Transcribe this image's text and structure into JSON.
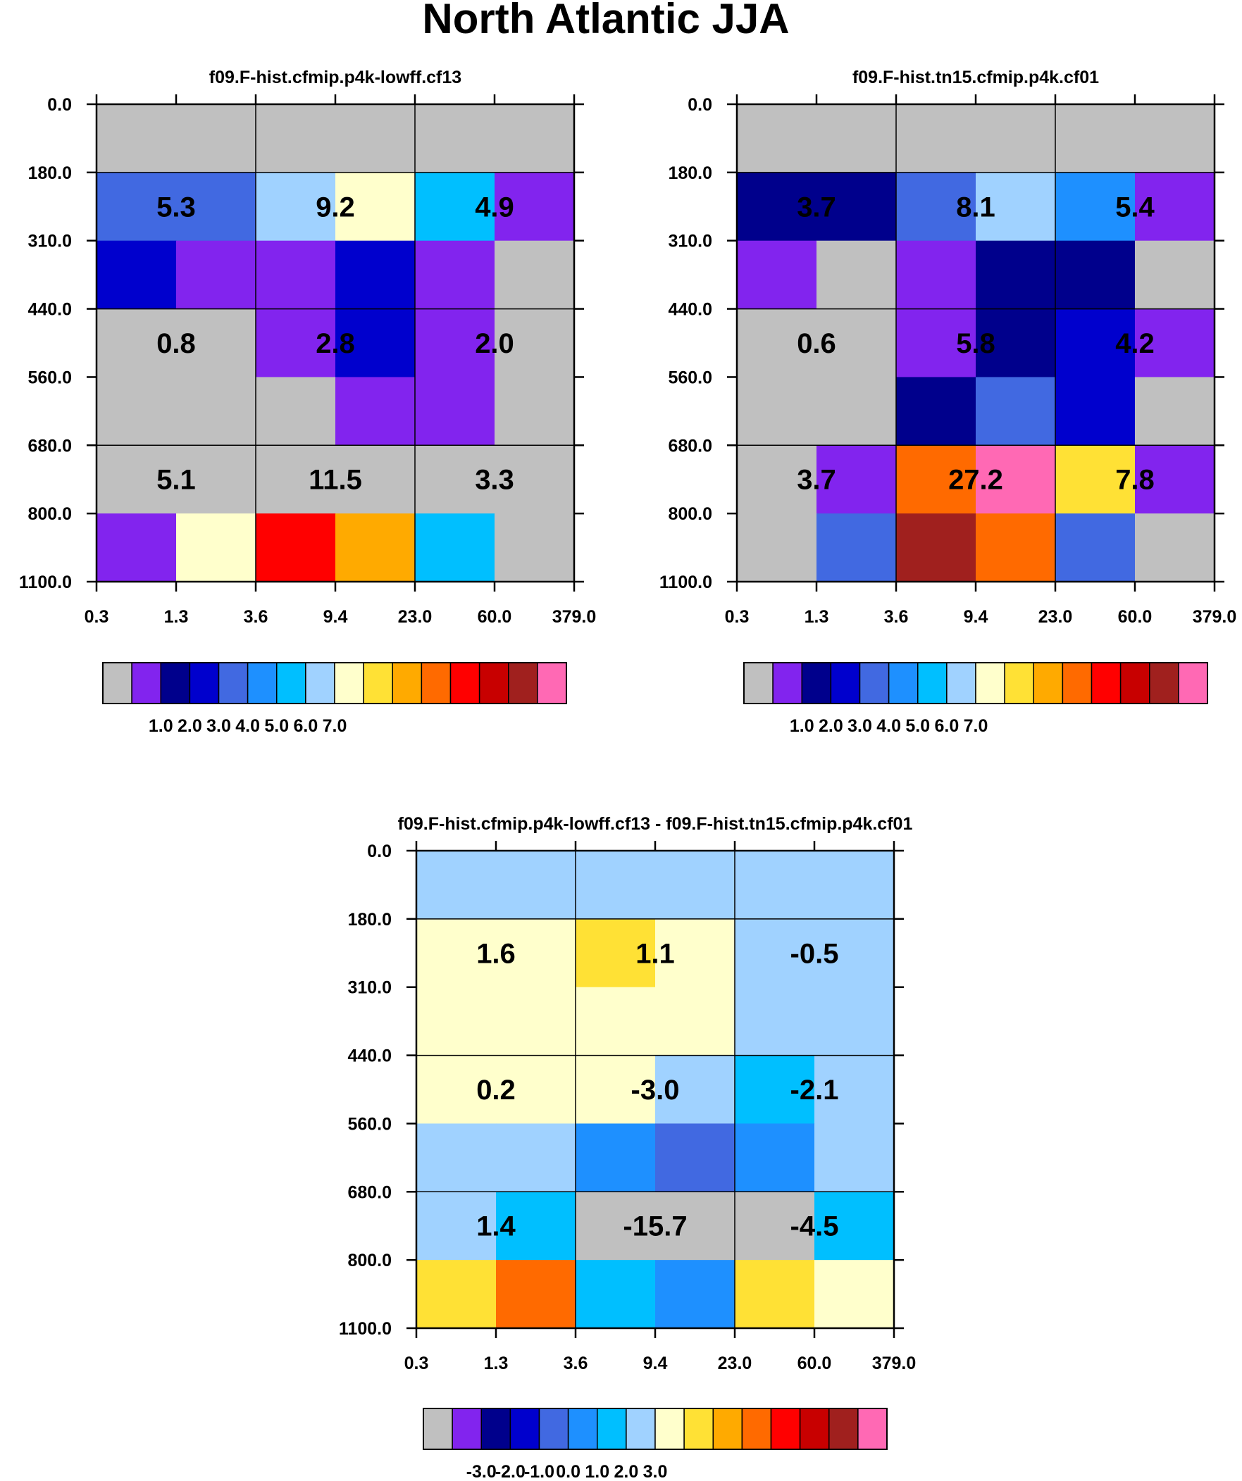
{
  "title": "North Atlantic JJA",
  "chart_data": [
    {
      "type": "heatmap",
      "title": "f09.F-hist.cfmip.p4k-lowff.cf13",
      "x_ticks": [
        "0.3",
        "1.3",
        "3.6",
        "9.4",
        "23.0",
        "60.0",
        "379.0"
      ],
      "y_ticks": [
        "0.0",
        "180.0",
        "310.0",
        "440.0",
        "560.0",
        "680.0",
        "800.0",
        "1100.0"
      ],
      "color_index": [
        [
          0,
          0,
          0,
          0,
          0,
          0
        ],
        [
          4,
          4,
          7,
          8,
          6,
          1
        ],
        [
          3,
          1,
          1,
          3,
          1,
          0
        ],
        [
          0,
          0,
          1,
          3,
          1,
          0
        ],
        [
          0,
          0,
          0,
          1,
          1,
          0
        ],
        [
          0,
          0,
          0,
          0,
          0,
          0
        ],
        [
          1,
          8,
          12,
          10,
          6,
          0
        ]
      ],
      "cell_labels": [
        [
          "5.3",
          "9.2",
          "4.9"
        ],
        [
          "0.8",
          "2.8",
          "2.0"
        ],
        [
          "5.1",
          "11.5",
          "3.3"
        ]
      ],
      "colorbar": {
        "colors": [
          "#c0c0c0",
          "#8224ee",
          "#00008c",
          "#0000cd",
          "#4169e1",
          "#1e90ff",
          "#00bfff",
          "#a0d2ff",
          "#ffffcc",
          "#ffe135",
          "#ffaa00",
          "#ff6a00",
          "#ff0000",
          "#c80000",
          "#a0201e",
          "#ff69b4"
        ],
        "labels": [
          "1.0",
          "2.0",
          "3.0",
          "4.0",
          "5.0",
          "6.0",
          "7.0"
        ]
      }
    },
    {
      "type": "heatmap",
      "title": "f09.F-hist.tn15.cfmip.p4k.cf01",
      "x_ticks": [
        "0.3",
        "1.3",
        "3.6",
        "9.4",
        "23.0",
        "60.0",
        "379.0"
      ],
      "y_ticks": [
        "0.0",
        "180.0",
        "310.0",
        "440.0",
        "560.0",
        "680.0",
        "800.0",
        "1100.0"
      ],
      "color_index": [
        [
          0,
          0,
          0,
          0,
          0,
          0
        ],
        [
          2,
          2,
          4,
          7,
          5,
          1
        ],
        [
          1,
          0,
          1,
          2,
          2,
          0
        ],
        [
          0,
          0,
          1,
          2,
          3,
          1
        ],
        [
          0,
          0,
          2,
          4,
          3,
          0
        ],
        [
          0,
          1,
          11,
          15,
          9,
          1
        ],
        [
          0,
          4,
          14,
          11,
          4,
          0
        ]
      ],
      "cell_labels": [
        [
          "3.7",
          "8.1",
          "5.4"
        ],
        [
          "0.6",
          "5.8",
          "4.2"
        ],
        [
          "3.7",
          "27.2",
          "7.8"
        ]
      ],
      "colorbar": {
        "colors": [
          "#c0c0c0",
          "#8224ee",
          "#00008c",
          "#0000cd",
          "#4169e1",
          "#1e90ff",
          "#00bfff",
          "#a0d2ff",
          "#ffffcc",
          "#ffe135",
          "#ffaa00",
          "#ff6a00",
          "#ff0000",
          "#c80000",
          "#a0201e",
          "#ff69b4"
        ],
        "labels": [
          "1.0",
          "2.0",
          "3.0",
          "4.0",
          "5.0",
          "6.0",
          "7.0"
        ]
      }
    },
    {
      "type": "heatmap",
      "title": "f09.F-hist.cfmip.p4k-lowff.cf13 - f09.F-hist.tn15.cfmip.p4k.cf01",
      "x_ticks": [
        "0.3",
        "1.3",
        "3.6",
        "9.4",
        "23.0",
        "60.0",
        "379.0"
      ],
      "y_ticks": [
        "0.0",
        "180.0",
        "310.0",
        "440.0",
        "560.0",
        "680.0",
        "800.0",
        "1100.0"
      ],
      "color_index": [
        [
          7,
          7,
          7,
          7,
          7,
          7
        ],
        [
          8,
          8,
          9,
          8,
          7,
          7
        ],
        [
          8,
          8,
          8,
          8,
          7,
          7
        ],
        [
          8,
          8,
          8,
          7,
          6,
          7
        ],
        [
          7,
          7,
          5,
          4,
          5,
          7
        ],
        [
          7,
          6,
          0,
          0,
          0,
          6
        ],
        [
          9,
          11,
          6,
          5,
          9,
          8
        ]
      ],
      "cell_labels": [
        [
          "1.6",
          "1.1",
          "-0.5"
        ],
        [
          "0.2",
          "-3.0",
          "-2.1"
        ],
        [
          "1.4",
          "-15.7",
          "-4.5"
        ]
      ],
      "colorbar": {
        "colors": [
          "#c0c0c0",
          "#8224ee",
          "#00008c",
          "#0000cd",
          "#4169e1",
          "#1e90ff",
          "#00bfff",
          "#a0d2ff",
          "#ffffcc",
          "#ffe135",
          "#ffaa00",
          "#ff6a00",
          "#ff0000",
          "#c80000",
          "#a0201e",
          "#ff69b4"
        ],
        "labels": [
          "-3.0",
          "-2.0",
          "-1.0",
          "0.0",
          "1.0",
          "2.0",
          "3.0"
        ]
      }
    }
  ]
}
